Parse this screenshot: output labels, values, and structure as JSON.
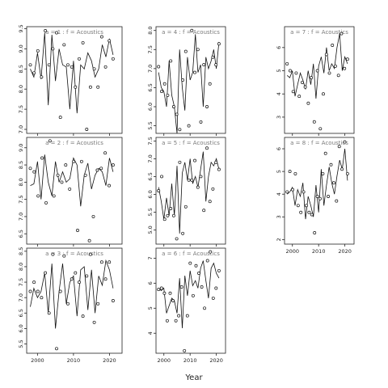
{
  "chart_data": {
    "type": "line",
    "xlabel": "Year",
    "x_ticks": [
      2000,
      2010,
      2020
    ],
    "xlim": [
      1997,
      2023.5
    ],
    "panels": [
      {
        "title": "a = 1  :  f = Acoustics",
        "ylim": [
          6.9,
          9.55
        ],
        "y_ticks": [
          "7.0",
          "7.5",
          "8.0",
          "8.5",
          "9.0",
          "9.5"
        ],
        "x": [
          1998,
          1999,
          2000,
          2001,
          2002,
          2003,
          2004,
          2005,
          2006,
          2007,
          2008,
          2009,
          2010,
          2011,
          2012,
          2013,
          2014,
          2015,
          2016,
          2017,
          2018,
          2019,
          2020,
          2021
        ],
        "line": [
          8.5,
          8.3,
          8.9,
          8.25,
          9.4,
          7.6,
          9.35,
          8.2,
          9.0,
          8.6,
          8.55,
          7.5,
          8.7,
          7.4,
          8.6,
          8.5,
          8.9,
          8.7,
          8.3,
          8.5,
          9.1,
          8.8,
          9.25,
          8.85
        ],
        "points": [
          8.6,
          8.4,
          8.95,
          8.3,
          9.45,
          8.6,
          9.0,
          9.4,
          7.3,
          9.1,
          8.6,
          8.55,
          8.05,
          8.75,
          9.15,
          7.0,
          8.05,
          8.5,
          8.05,
          9.3,
          8.55,
          9.2,
          8.75
        ]
      },
      {
        "title": "a = 2  :  f = Acoustics",
        "ylim": [
          6.2,
          9.3
        ],
        "y_ticks": [
          "6.5",
          "7.0",
          "7.5",
          "8.0",
          "8.5",
          "9.0"
        ],
        "x": [
          1998,
          1999,
          2000,
          2001,
          2002,
          2003,
          2004,
          2005,
          2006,
          2007,
          2008,
          2009,
          2010,
          2011,
          2012,
          2013,
          2014,
          2015,
          2016,
          2017,
          2018,
          2019,
          2020,
          2021
        ],
        "line": [
          7.9,
          7.95,
          8.6,
          7.5,
          8.8,
          8.0,
          7.6,
          8.6,
          8.0,
          8.3,
          8.0,
          8.1,
          8.7,
          8.5,
          7.3,
          8.2,
          8.55,
          7.8,
          8.2,
          8.4,
          8.3,
          7.9,
          8.7,
          8.3
        ],
        "points": [
          8.4,
          8.3,
          7.6,
          8.7,
          7.4,
          9.2,
          7.6,
          8.2,
          8.0,
          8.5,
          7.8,
          8.6,
          6.6,
          8.6,
          8.2,
          6.3,
          7.0,
          8.35,
          8.4,
          8.85,
          7.9,
          8.5
        ]
      },
      {
        "title": "a = 3  :  f = Acoustics",
        "ylim": [
          5.2,
          8.6
        ],
        "y_ticks": [
          "5.5",
          "6.0",
          "6.5",
          "7.0",
          "7.5",
          "8.0",
          "8.5"
        ],
        "x": [
          1998,
          1999,
          2000,
          2001,
          2002,
          2003,
          2004,
          2005,
          2006,
          2007,
          2008,
          2009,
          2010,
          2011,
          2012,
          2013,
          2014,
          2015,
          2016,
          2017,
          2018,
          2019,
          2020,
          2021
        ],
        "line": [
          6.7,
          7.3,
          7.0,
          7.2,
          7.8,
          6.5,
          8.1,
          6.0,
          7.2,
          8.1,
          6.8,
          7.5,
          7.7,
          6.4,
          7.9,
          8.0,
          6.6,
          7.9,
          6.5,
          7.7,
          7.4,
          8.2,
          7.9,
          7.3
        ],
        "points": [
          7.2,
          7.5,
          7.2,
          7.0,
          7.8,
          6.5,
          8.4,
          5.35,
          7.2,
          8.35,
          6.8,
          7.6,
          7.8,
          7.5,
          6.4,
          7.7,
          8.4,
          6.2,
          6.8,
          8.15,
          7.6,
          8.15,
          6.9
        ]
      },
      {
        "title": "a = 4  :  f = Acoustics",
        "ylim": [
          5.3,
          8.1
        ],
        "y_ticks": [
          "5.5",
          "6.0",
          "6.5",
          "7.0",
          "7.5",
          "8.0"
        ],
        "x": [
          1998,
          1999,
          2000,
          2001,
          2002,
          2003,
          2004,
          2005,
          2006,
          2007,
          2008,
          2009,
          2010,
          2011,
          2012,
          2013,
          2014,
          2015,
          2016,
          2017,
          2018,
          2019,
          2020,
          2021
        ],
        "line": [
          6.9,
          6.5,
          6.4,
          6.0,
          7.2,
          6.3,
          6.0,
          5.3,
          7.5,
          6.5,
          5.9,
          7.3,
          6.7,
          6.9,
          7.9,
          6.9,
          7.1,
          6.0,
          7.3,
          7.0,
          7.2,
          7.5,
          7.0,
          7.7
        ],
        "points": [
          7.05,
          6.4,
          6.6,
          6.3,
          7.2,
          6.0,
          5.8,
          5.4,
          6.7,
          7.45,
          5.5,
          8.0,
          6.9,
          7.5,
          5.6,
          7.1,
          6.0,
          6.6,
          7.3,
          7.1,
          7.65
        ]
      },
      {
        "title": "a = 5  :  f = Acoustics",
        "ylim": [
          4.6,
          7.6
        ],
        "y_ticks": [
          "5.0",
          "5.5",
          "6.0",
          "6.5",
          "7.0",
          "7.5"
        ],
        "x": [
          1998,
          1999,
          2000,
          2001,
          2002,
          2003,
          2004,
          2005,
          2006,
          2007,
          2008,
          2009,
          2010,
          2011,
          2012,
          2013,
          2014,
          2015,
          2016,
          2017,
          2018,
          2019,
          2020,
          2021
        ],
        "line": [
          6.2,
          5.8,
          5.3,
          5.9,
          5.4,
          6.3,
          5.4,
          6.8,
          4.9,
          6.6,
          6.9,
          6.4,
          7.0,
          6.3,
          6.5,
          6.2,
          6.7,
          7.2,
          5.8,
          6.5,
          6.9,
          6.8,
          7.0,
          6.7
        ],
        "points": [
          6.1,
          6.5,
          5.3,
          5.4,
          5.6,
          5.4,
          4.75,
          6.9,
          4.9,
          5.65,
          6.4,
          6.4,
          6.95,
          6.2,
          6.5,
          5.55,
          7.3,
          5.8,
          6.15,
          6.9,
          6.7
        ]
      },
      {
        "title": "a = 6  :  f = Acoustics",
        "ylim": [
          3.2,
          7.4
        ],
        "y_ticks": [
          "4",
          "5",
          "6",
          "7"
        ],
        "x": [
          1998,
          1999,
          2000,
          2001,
          2002,
          2003,
          2004,
          2005,
          2006,
          2007,
          2008,
          2009,
          2010,
          2011,
          2012,
          2013,
          2014,
          2015,
          2016,
          2017,
          2018,
          2019,
          2020,
          2021
        ],
        "line": [
          5.8,
          5.7,
          5.8,
          4.8,
          5.1,
          5.4,
          5.3,
          4.8,
          6.2,
          4.2,
          6.3,
          5.5,
          6.5,
          5.9,
          6.1,
          5.8,
          6.6,
          6.9,
          6.1,
          5.4,
          6.6,
          6.8,
          6.4,
          6.2
        ],
        "points": [
          5.75,
          5.8,
          5.6,
          4.5,
          5.6,
          5.3,
          4.5,
          4.7,
          5.85,
          3.3,
          4.7,
          6.8,
          5.5,
          6.7,
          6.4,
          5.85,
          5.0,
          6.9,
          7.25,
          5.4,
          5.8,
          6.5
        ]
      },
      {
        "title": "a = 7  :  f = Acoustics",
        "ylim": [
          2.3,
          6.9
        ],
        "y_ticks": [
          "3",
          "4",
          "5",
          "6"
        ],
        "x": [
          1998,
          1999,
          2000,
          2001,
          2002,
          2003,
          2004,
          2005,
          2006,
          2007,
          2008,
          2009,
          2010,
          2011,
          2012,
          2013,
          2014,
          2015,
          2016,
          2017,
          2018,
          2019,
          2020,
          2021
        ],
        "line": [
          4.8,
          4.7,
          5.0,
          3.9,
          4.4,
          4.9,
          4.6,
          4.2,
          5.0,
          4.4,
          5.3,
          3.8,
          5.2,
          5.6,
          4.9,
          6.0,
          5.0,
          5.3,
          5.1,
          6.0,
          6.6,
          5.0,
          5.6,
          5.3
        ],
        "points": [
          5.3,
          5.0,
          4.1,
          4.9,
          3.9,
          4.5,
          4.3,
          3.6,
          4.7,
          2.8,
          5.0,
          2.5,
          4.0,
          5.7,
          4.9,
          6.1,
          5.2,
          4.8,
          6.6,
          5.1,
          5.5
        ]
      },
      {
        "title": "a = 8  :  f = Acoustics",
        "ylim": [
          1.8,
          6.5
        ],
        "y_ticks": [
          "2",
          "3",
          "4",
          "5",
          "6"
        ],
        "x": [
          1998,
          1999,
          2000,
          2001,
          2002,
          2003,
          2004,
          2005,
          2006,
          2007,
          2008,
          2009,
          2010,
          2011,
          2012,
          2013,
          2014,
          2015,
          2016,
          2017,
          2018,
          2019,
          2020,
          2021
        ],
        "line": [
          4.0,
          4.1,
          4.3,
          3.5,
          4.2,
          3.9,
          4.5,
          2.9,
          3.9,
          3.5,
          3.0,
          4.4,
          3.2,
          5.1,
          3.5,
          4.4,
          5.2,
          4.5,
          4.0,
          4.8,
          5.5,
          5.1,
          6.0,
          4.6
        ],
        "points": [
          4.1,
          5.0,
          4.2,
          4.9,
          3.5,
          3.2,
          4.1,
          3.5,
          3.2,
          3.1,
          2.3,
          3.9,
          3.8,
          4.9,
          5.8,
          3.9,
          5.3,
          4.5,
          3.7,
          6.1,
          5.1,
          6.3,
          4.9
        ]
      }
    ]
  }
}
